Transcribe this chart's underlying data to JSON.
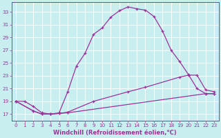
{
  "background_color": "#c8eef0",
  "grid_color": "#ffffff",
  "line_color": "#993399",
  "xlabel": "Windchill (Refroidissement éolien,°C)",
  "xlabel_fontsize": 6.0,
  "xtick_labels": [
    "0",
    "1",
    "2",
    "3",
    "4",
    "5",
    "6",
    "7",
    "8",
    "9",
    "10",
    "11",
    "12",
    "13",
    "14",
    "15",
    "16",
    "17",
    "18",
    "19",
    "20",
    "21",
    "22",
    "23"
  ],
  "ytick_values": [
    17,
    19,
    21,
    23,
    25,
    27,
    29,
    31,
    33
  ],
  "xlim": [
    -0.5,
    23.5
  ],
  "ylim": [
    16.0,
    34.5
  ],
  "line1_x": [
    0,
    1,
    2,
    3,
    4,
    5,
    6,
    7,
    8,
    9,
    10,
    11,
    12,
    13,
    14,
    15,
    16,
    17,
    18,
    19,
    20,
    21,
    22,
    23
  ],
  "line1_y": [
    19,
    19,
    18.2,
    17.2,
    17,
    17.2,
    20.5,
    24.5,
    26.5,
    29.5,
    30.5,
    32.2,
    33.2,
    33.8,
    33.5,
    33.3,
    32.3,
    30,
    27,
    25.2,
    23.2,
    21,
    20.2,
    20.2
  ],
  "line2_x": [
    0,
    2,
    3,
    4,
    5,
    6,
    22,
    23
  ],
  "line2_y": [
    19,
    17.5,
    17,
    17,
    17.1,
    17.2,
    20.2,
    20.2
  ],
  "line3_x": [
    0,
    2,
    3,
    4,
    5,
    6,
    9,
    13,
    15,
    19,
    20,
    21,
    22,
    23
  ],
  "line3_y": [
    19,
    17.5,
    17,
    17,
    17.1,
    17.3,
    19.0,
    20.5,
    21.2,
    22.8,
    23.1,
    23.1,
    20.8,
    20.5
  ],
  "figsize": [
    3.2,
    2.0
  ],
  "dpi": 100,
  "tick_fontsize": 5.2,
  "marker_size": 3.5,
  "line_width": 0.9
}
